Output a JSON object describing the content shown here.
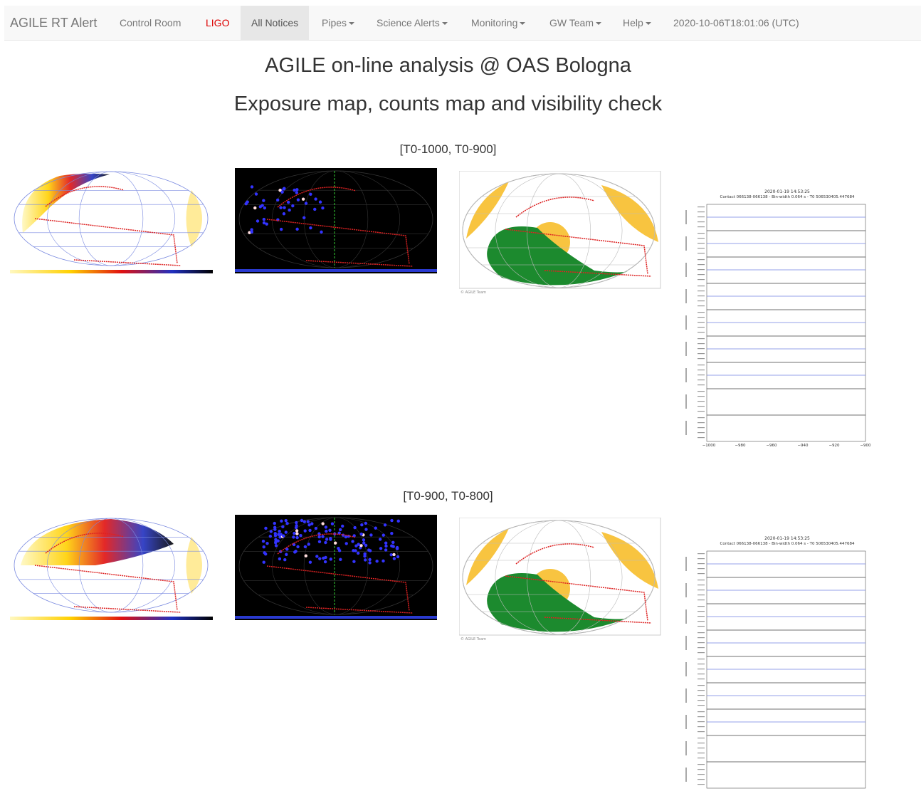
{
  "nav": {
    "brand": "AGILE RT Alert",
    "items": [
      "Control Room",
      "LIGO",
      "All Notices",
      "Pipes",
      "Science Alerts",
      "Monitoring",
      "GW Team",
      "Help"
    ],
    "time": "2020-10-06T18:01:06 (UTC)"
  },
  "header": {
    "title": "AGILE on-line analysis @ OAS Bologna",
    "subtitle": "Exposure map, counts map and visibility check"
  },
  "sections": [
    {
      "heading": "[T0-1000, T0-900]",
      "lightcurve_time": "2020-01-19 14:53:25",
      "lightcurve_info": "Contact 066138-066138 - Bin-width 0.064 s - T0 506530405.447684",
      "lightcurve_xticks": [
        "−1000",
        "−980",
        "−960",
        "−940",
        "−920",
        "−900"
      ],
      "credit": "© AGILE Team"
    },
    {
      "heading": "[T0-900, T0-800]",
      "lightcurve_time": "2020-01-19 14:53:25",
      "lightcurve_info": "Contact 066138-066138 - Bin-width 0.064 s - T0 506530405.447684",
      "credit": "© AGILE Team"
    }
  ]
}
